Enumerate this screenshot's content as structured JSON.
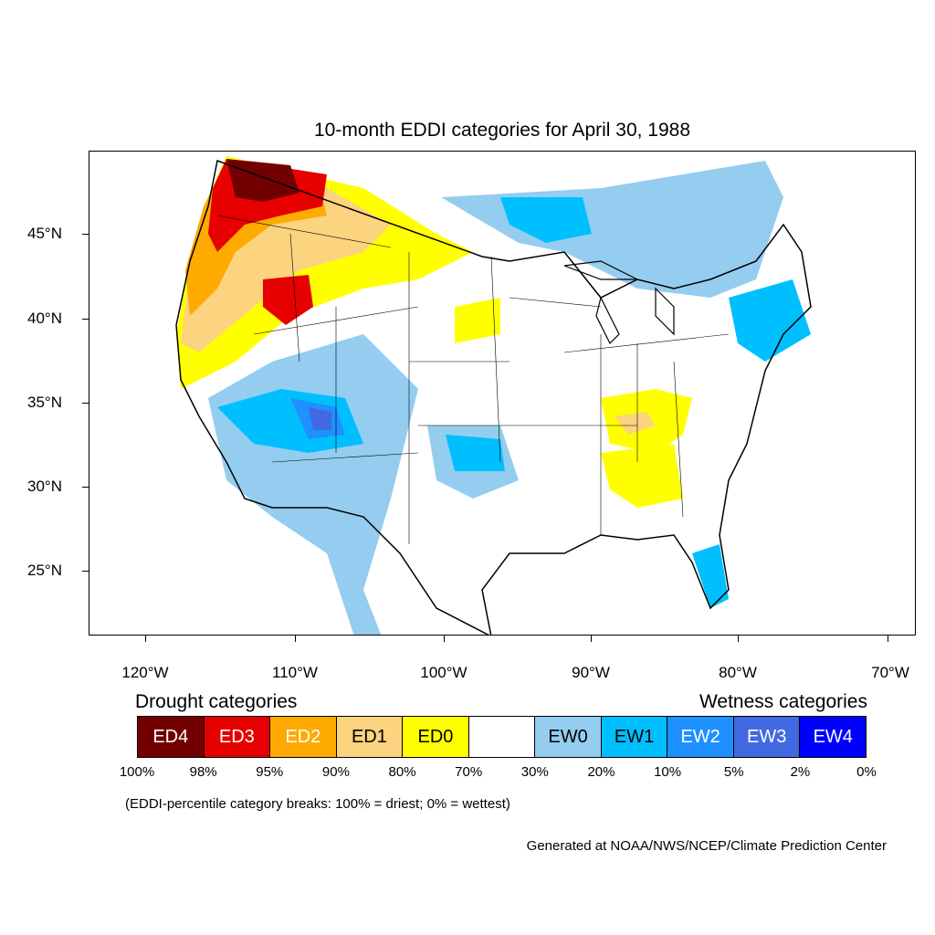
{
  "title": "10-month EDDI categories for April 30, 1988",
  "map": {
    "lat_labels": [
      "45°N",
      "40°N",
      "35°N",
      "30°N",
      "25°N"
    ],
    "lon_labels": [
      "120°W",
      "110°W",
      "100°W",
      "90°W",
      "80°W",
      "70°W"
    ]
  },
  "legend": {
    "drought_title": "Drought categories",
    "wetness_title": "Wetness categories",
    "categories": [
      {
        "label": "ED4",
        "color": "#730000",
        "text_color": "#ffffff"
      },
      {
        "label": "ED3",
        "color": "#e60000",
        "text_color": "#ffffff"
      },
      {
        "label": "ED2",
        "color": "#ffaa00",
        "text_color": "#ffffff"
      },
      {
        "label": "ED1",
        "color": "#fcd37f",
        "text_color": "#000000"
      },
      {
        "label": "ED0",
        "color": "#ffff00",
        "text_color": "#000000"
      },
      {
        "label": "",
        "color": "#ffffff",
        "text_color": "#000000"
      },
      {
        "label": "EW0",
        "color": "#94cdf0",
        "text_color": "#000000"
      },
      {
        "label": "EW1",
        "color": "#00bfff",
        "text_color": "#000000"
      },
      {
        "label": "EW2",
        "color": "#1e90ff",
        "text_color": "#ffffff"
      },
      {
        "label": "EW3",
        "color": "#4169e1",
        "text_color": "#ffffff"
      },
      {
        "label": "EW4",
        "color": "#0000ff",
        "text_color": "#ffffff"
      }
    ],
    "breaks": [
      "100%",
      "98%",
      "95%",
      "90%",
      "80%",
      "70%",
      "30%",
      "20%",
      "10%",
      "5%",
      "2%",
      "0%"
    ]
  },
  "note": "(EDDI-percentile category breaks: 100% = driest; 0% = wettest)",
  "credit": "Generated at NOAA/NWS/NCEP/Climate Prediction Center"
}
